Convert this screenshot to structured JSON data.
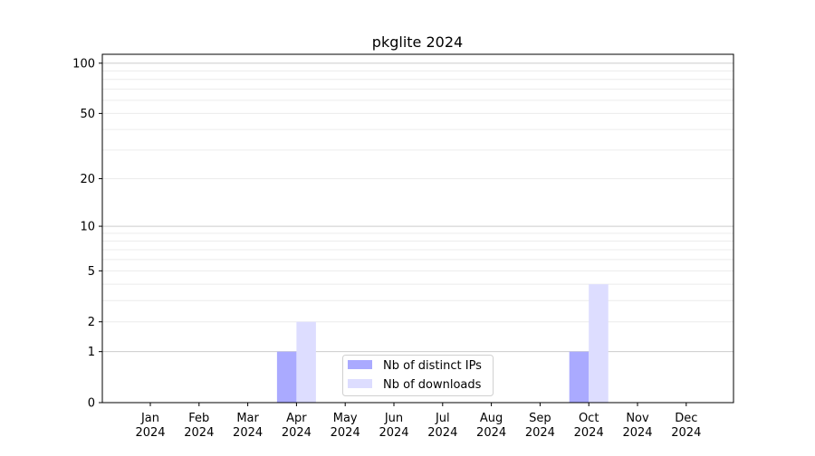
{
  "chart_data": {
    "type": "bar",
    "title": "pkglite 2024",
    "xlabel": "",
    "ylabel": "",
    "yscale": "symlog (log10(1+y))",
    "ylim": [
      0,
      113
    ],
    "yticks": [
      0,
      1,
      2,
      5,
      10,
      20,
      50,
      100
    ],
    "grid": true,
    "legend_position": "bottom-center",
    "categories": [
      "Jan\n2024",
      "Feb\n2024",
      "Mar\n2024",
      "Apr\n2024",
      "May\n2024",
      "Jun\n2024",
      "Jul\n2024",
      "Aug\n2024",
      "Sep\n2024",
      "Oct\n2024",
      "Nov\n2024",
      "Dec\n2024"
    ],
    "series": [
      {
        "name": "Nb of distinct IPs",
        "color": "#aaaaff",
        "values": [
          0,
          0,
          0,
          1,
          0,
          0,
          0,
          0,
          0,
          1,
          0,
          0
        ]
      },
      {
        "name": "Nb of downloads",
        "color": "#ddddff",
        "values": [
          0,
          0,
          0,
          2,
          0,
          0,
          0,
          0,
          0,
          4,
          0,
          0
        ]
      }
    ]
  }
}
